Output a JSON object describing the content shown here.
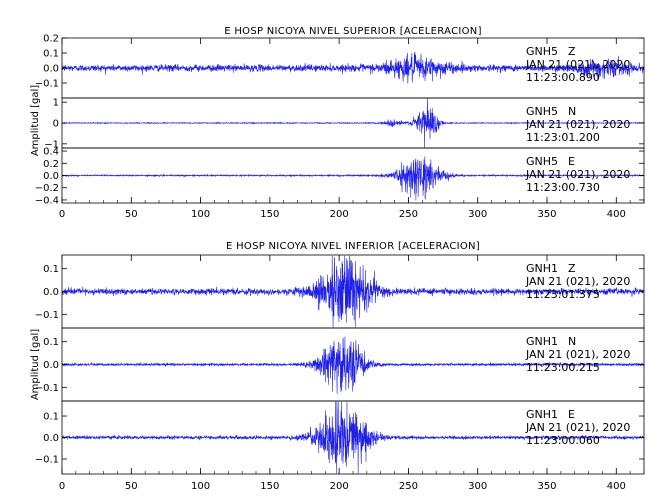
{
  "chart_data": [
    {
      "type": "line",
      "title": "E HOSP NICOYA NIVEL SUPERIOR [ACELERACION]",
      "ylabel": "Amplitud [gal]",
      "xlabel": "",
      "xlim": [
        0,
        420
      ],
      "x_ticks": [
        0,
        50,
        100,
        150,
        200,
        250,
        300,
        350,
        400
      ],
      "grid": false,
      "color": "#1f1fe6",
      "traces": [
        {
          "station": "GNH5",
          "component": "Z",
          "date": "JAN 21 (021), 2020",
          "time": "11:23:00.890",
          "ylim": [
            -0.2,
            0.2
          ],
          "y_ticks": [
            -0.1,
            0.0,
            0.1,
            0.2
          ],
          "y_tick_labels": [
            "−0.1",
            "0.0",
            "0.1",
            "0.2"
          ],
          "noise_amp": 0.02,
          "bursts": [
            {
              "center": 255,
              "width": 22,
              "amp": 0.06
            },
            {
              "center": 390,
              "width": 18,
              "amp": 0.04
            }
          ]
        },
        {
          "station": "GNH5",
          "component": "N",
          "date": "JAN 21 (021), 2020",
          "time": "11:23:01.200",
          "ylim": [
            -1.2,
            1.2
          ],
          "y_ticks": [
            -1,
            0,
            1
          ],
          "y_tick_labels": [
            "−1",
            "0",
            "1"
          ],
          "noise_amp": 0.02,
          "bursts": [
            {
              "center": 240,
              "width": 8,
              "amp": 0.15
            },
            {
              "center": 263,
              "width": 7,
              "amp": 1.0
            }
          ]
        },
        {
          "station": "GNH5",
          "component": "E",
          "date": "JAN 21 (021), 2020",
          "time": "11:23:00.730",
          "ylim": [
            -0.45,
            0.45
          ],
          "y_ticks": [
            -0.4,
            -0.2,
            0.0,
            0.2,
            0.4
          ],
          "y_tick_labels": [
            "−0.4",
            "−0.2",
            "0.0",
            "0.2",
            "0.4"
          ],
          "noise_amp": 0.01,
          "bursts": [
            {
              "center": 258,
              "width": 15,
              "amp": 0.3
            }
          ]
        }
      ]
    },
    {
      "type": "line",
      "title": "E HOSP NICOYA NIVEL INFERIOR [ACELERACION]",
      "ylabel": "Amplitud [gal]",
      "xlabel": "",
      "xlim": [
        0,
        420
      ],
      "x_ticks": [
        0,
        50,
        100,
        150,
        200,
        250,
        300,
        350,
        400
      ],
      "grid": false,
      "color": "#1f1fe6",
      "traces": [
        {
          "station": "GNH1",
          "component": "Z",
          "date": "JAN 21 (021), 2020",
          "time": "11:23:01.375",
          "ylim": [
            -0.16,
            0.16
          ],
          "y_ticks": [
            -0.1,
            0.0,
            0.1
          ],
          "y_tick_labels": [
            "−0.1",
            "0.0",
            "0.1"
          ],
          "noise_amp": 0.012,
          "bursts": [
            {
              "center": 205,
              "width": 18,
              "amp": 0.14
            }
          ]
        },
        {
          "station": "GNH1",
          "component": "N",
          "date": "JAN 21 (021), 2020",
          "time": "11:23:00.215",
          "ylim": [
            -0.16,
            0.16
          ],
          "y_ticks": [
            -0.1,
            0.0,
            0.1
          ],
          "y_tick_labels": [
            "−0.1",
            "0.0",
            "0.1"
          ],
          "noise_amp": 0.005,
          "bursts": [
            {
              "center": 202,
              "width": 15,
              "amp": 0.12
            }
          ]
        },
        {
          "station": "GNH1",
          "component": "E",
          "date": "JAN 21 (021), 2020",
          "time": "11:23:00.060",
          "ylim": [
            -0.17,
            0.17
          ],
          "y_ticks": [
            -0.1,
            0.0,
            0.1
          ],
          "y_tick_labels": [
            "−0.1",
            "0.0",
            "0.1"
          ],
          "noise_amp": 0.007,
          "bursts": [
            {
              "center": 203,
              "width": 17,
              "amp": 0.15
            }
          ]
        }
      ]
    }
  ]
}
